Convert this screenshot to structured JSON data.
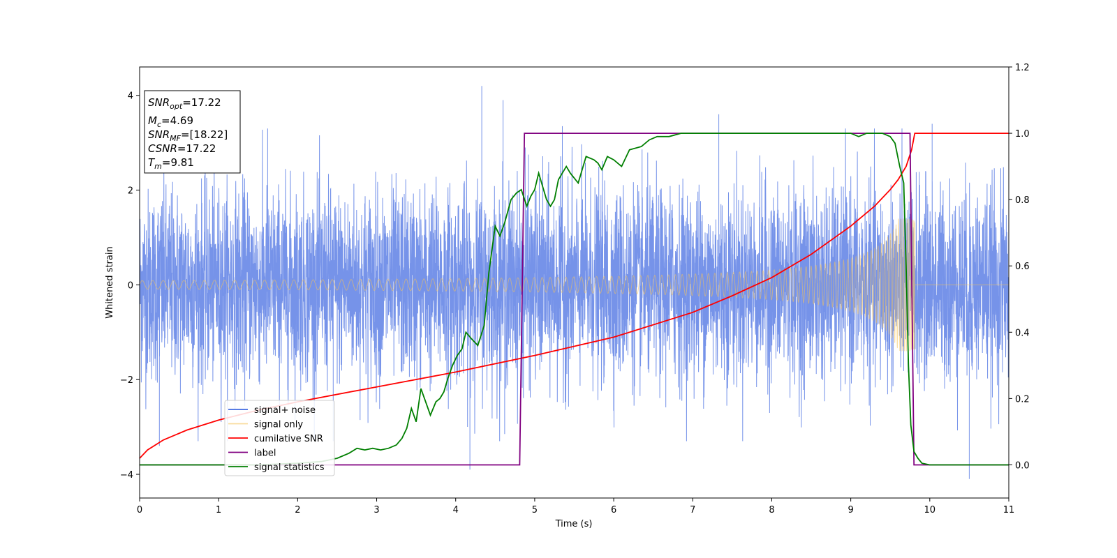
{
  "chart_data": {
    "type": "line",
    "xlabel": "Time (s)",
    "ylabel": "Whitened strain",
    "xlim": [
      0,
      11
    ],
    "ylim_left": [
      -4.5,
      4.6
    ],
    "ylim_right": [
      -0.1,
      1.2
    ],
    "x_ticks": [
      0,
      1,
      2,
      3,
      4,
      5,
      6,
      7,
      8,
      9,
      10,
      11
    ],
    "x_tick_labels": [
      "0",
      "1",
      "2",
      "3",
      "4",
      "5",
      "6",
      "7",
      "8",
      "9",
      "10",
      "11"
    ],
    "y_left_ticks": [
      -4,
      -2,
      0,
      2,
      4
    ],
    "y_left_tick_labels": [
      "−4",
      "−2",
      "0",
      "2",
      "4"
    ],
    "y_right_ticks": [
      0.0,
      0.2,
      0.4,
      0.6,
      0.8,
      1.0,
      1.2
    ],
    "y_right_tick_labels": [
      "0.0",
      "0.2",
      "0.4",
      "0.6",
      "0.8",
      "1.0",
      "1.2"
    ],
    "legend_position": "lower-left",
    "grid": false,
    "info_box": {
      "snr_opt": {
        "sym": "SNR",
        "sub": "opt",
        "val": "=17.22"
      },
      "mc": {
        "sym": "M",
        "sub": "c",
        "val": "=4.69"
      },
      "snr_mf": {
        "sym": "SNR",
        "sub": "MF",
        "val": "=[18.22]"
      },
      "csnr": {
        "sym": "CSNR",
        "sub": "",
        "val": "=17.22"
      },
      "tm": {
        "sym": "T",
        "sub": "m",
        "val": "=9.81"
      }
    },
    "series": [
      {
        "name": "signal+ noise",
        "axis": "left",
        "color": "#4169e1",
        "opacity": 0.72,
        "description": "white noise band, std ~1, range ~±3.3, with peaks",
        "envelope_std": 1.0,
        "spikes": [
          [
            0.25,
            -3.4
          ],
          [
            1.62,
            3.3
          ],
          [
            2.45,
            -3.3
          ],
          [
            4.18,
            -3.9
          ],
          [
            4.33,
            4.2
          ],
          [
            4.6,
            3.9
          ],
          [
            4.62,
            -3.15
          ],
          [
            4.88,
            2.9
          ],
          [
            5.35,
            3.35
          ],
          [
            7.33,
            3.6
          ],
          [
            10.03,
            3.4
          ],
          [
            10.5,
            -4.1
          ]
        ]
      },
      {
        "name": "signal only",
        "axis": "left",
        "color": "#f5c35a",
        "chirp_f0": 7.5,
        "chirp_f1": 250,
        "t_merger": 9.81,
        "amplitude_early": 0.09,
        "amplitude_late": 1.4
      },
      {
        "name": "cumilative SNR",
        "axis": "right",
        "color": "#ff0000",
        "x": [
          0,
          0.1,
          0.3,
          0.6,
          1,
          1.5,
          2,
          3,
          4,
          5,
          6,
          7,
          7.5,
          8,
          8.5,
          9,
          9.3,
          9.5,
          9.6,
          9.7,
          9.77,
          9.81,
          11
        ],
        "y": [
          0.02,
          0.045,
          0.075,
          0.105,
          0.135,
          0.165,
          0.19,
          0.235,
          0.28,
          0.33,
          0.385,
          0.46,
          0.51,
          0.565,
          0.635,
          0.72,
          0.78,
          0.83,
          0.86,
          0.9,
          0.95,
          1.0,
          1.0
        ]
      },
      {
        "name": "label",
        "axis": "right",
        "color": "#800080",
        "x": [
          0,
          4.81,
          4.87,
          9.75,
          9.8,
          11
        ],
        "y": [
          0,
          0,
          1,
          1,
          0,
          0
        ]
      },
      {
        "name": "signal statistics",
        "axis": "right",
        "color": "#007f00",
        "x": [
          0,
          0.5,
          1,
          1.5,
          2,
          2.3,
          2.5,
          2.65,
          2.75,
          2.85,
          2.95,
          3.05,
          3.15,
          3.25,
          3.32,
          3.38,
          3.44,
          3.5,
          3.56,
          3.62,
          3.68,
          3.75,
          3.8,
          3.85,
          3.9,
          3.96,
          4.02,
          4.08,
          4.13,
          4.2,
          4.28,
          4.36,
          4.42,
          4.5,
          4.56,
          4.62,
          4.7,
          4.77,
          4.83,
          4.9,
          4.95,
          5,
          5.05,
          5.1,
          5.15,
          5.2,
          5.25,
          5.3,
          5.4,
          5.45,
          5.55,
          5.65,
          5.75,
          5.8,
          5.85,
          5.92,
          6,
          6.1,
          6.2,
          6.35,
          6.45,
          6.55,
          6.7,
          6.85,
          7,
          7.5,
          8,
          8.5,
          9,
          9.1,
          9.2,
          9.4,
          9.5,
          9.56,
          9.62,
          9.67,
          9.7,
          9.73,
          9.76,
          9.8,
          9.85,
          9.9,
          10,
          10.2,
          11
        ],
        "y": [
          0,
          0,
          0,
          0,
          0.005,
          0.01,
          0.02,
          0.035,
          0.05,
          0.045,
          0.05,
          0.045,
          0.05,
          0.06,
          0.08,
          0.11,
          0.17,
          0.13,
          0.23,
          0.19,
          0.15,
          0.19,
          0.2,
          0.22,
          0.26,
          0.3,
          0.33,
          0.35,
          0.4,
          0.38,
          0.36,
          0.42,
          0.58,
          0.72,
          0.69,
          0.73,
          0.8,
          0.82,
          0.83,
          0.78,
          0.81,
          0.83,
          0.88,
          0.84,
          0.8,
          0.78,
          0.8,
          0.86,
          0.9,
          0.88,
          0.85,
          0.93,
          0.92,
          0.91,
          0.89,
          0.93,
          0.92,
          0.9,
          0.95,
          0.96,
          0.98,
          0.99,
          0.99,
          1.0,
          1.0,
          1.0,
          1.0,
          1.0,
          1.0,
          0.99,
          1.0,
          1.0,
          0.99,
          0.97,
          0.9,
          0.85,
          0.6,
          0.3,
          0.12,
          0.04,
          0.02,
          0.005,
          0,
          0,
          0
        ]
      }
    ]
  }
}
